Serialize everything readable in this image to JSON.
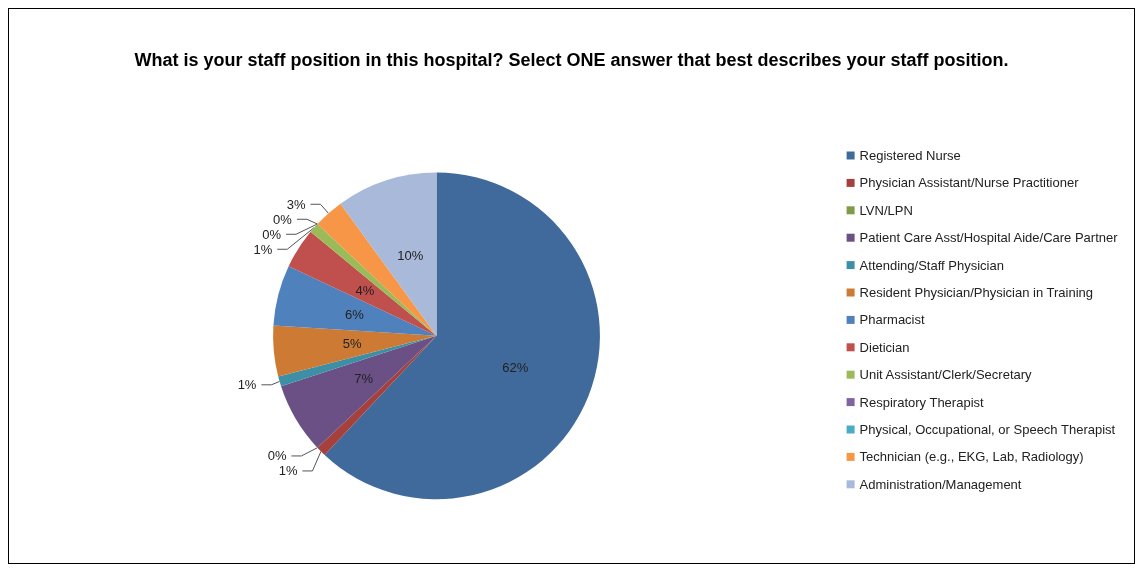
{
  "chart_data": {
    "type": "pie",
    "title": "What is your staff position in this hospital? Select ONE answer that best describes your staff position.",
    "categories": [
      "Registered Nurse",
      "Physician Assistant/Nurse Practitioner",
      "LVN/LPN",
      "Patient Care Asst/Hospital Aide/Care Partner",
      "Attending/Staff Physician",
      "Resident Physician/Physician in Training",
      "Pharmacist",
      "Dietician",
      "Unit Assistant/Clerk/Secretary",
      "Respiratory Therapist",
      "Physical, Occupational, or Speech Therapist",
      "Technician (e.g., EKG, Lab, Radiology)",
      "Administration/Management"
    ],
    "values": [
      62,
      1,
      0,
      7,
      1,
      5,
      6,
      4,
      1,
      0,
      0,
      3,
      10
    ],
    "colors": [
      "#416a9c",
      "#a6403c",
      "#7f9a48",
      "#6a5084",
      "#3d8fa6",
      "#cd7a35",
      "#4f81bd",
      "#c0504d",
      "#9bbb59",
      "#8064a2",
      "#4bacc6",
      "#f79646",
      "#a8b9d9"
    ],
    "value_labels": [
      "62%",
      "1%",
      "0%",
      "7%",
      "1%",
      "5%",
      "6%",
      "4%",
      "1%",
      "0%",
      "0%",
      "3%",
      "10%"
    ],
    "legend": "right"
  }
}
